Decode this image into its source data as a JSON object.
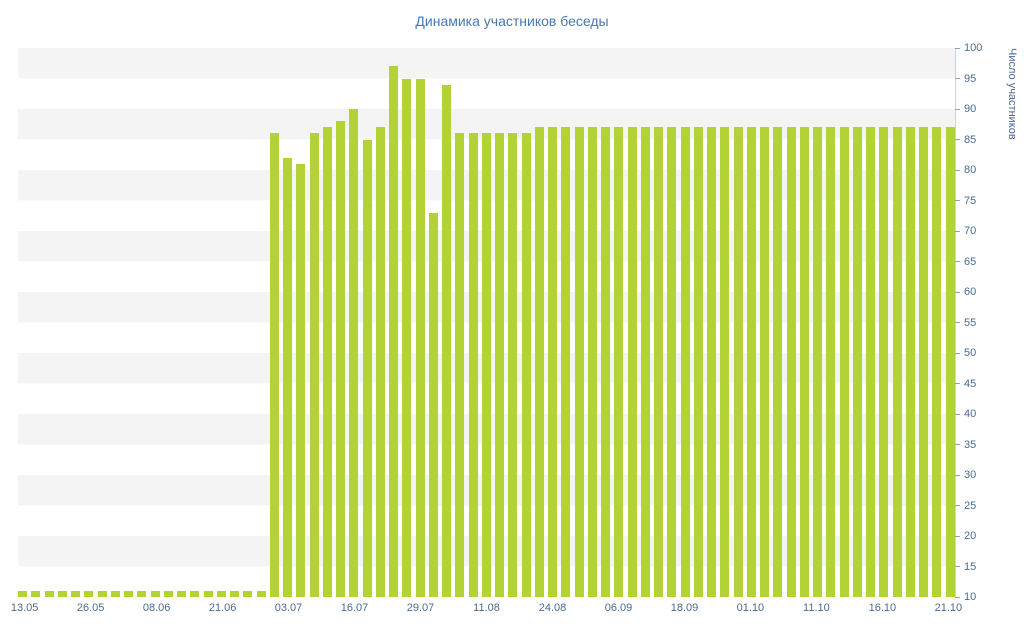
{
  "chart_data": {
    "type": "bar",
    "title": "Динамика участников беседы",
    "ylabel": "Число участников",
    "xlabel": "",
    "ylim": [
      10,
      100
    ],
    "yticks": [
      100,
      95,
      90,
      85,
      80,
      75,
      70,
      65,
      60,
      55,
      50,
      45,
      40,
      35,
      30,
      25,
      20,
      15,
      10
    ],
    "x_labels": [
      "13.05",
      "26.05",
      "08.06",
      "21.06",
      "03.07",
      "16.07",
      "29.07",
      "11.08",
      "24.08",
      "06.09",
      "18.09",
      "01.10",
      "11.10",
      "16.10",
      "21.10"
    ],
    "label_step": 5,
    "values": [
      11,
      11,
      11,
      11,
      11,
      11,
      11,
      11,
      11,
      11,
      11,
      11,
      11,
      11,
      11,
      11,
      11,
      11,
      11,
      86,
      82,
      81,
      86,
      87,
      88,
      90,
      85,
      87,
      97,
      95,
      95,
      73,
      94,
      86,
      86,
      86,
      86,
      86,
      86,
      87,
      87,
      87,
      87,
      87,
      87,
      87,
      87,
      87,
      87,
      87,
      87,
      87,
      87,
      87,
      87,
      87,
      87,
      87,
      87,
      87,
      87,
      87,
      87,
      87,
      87,
      87,
      87,
      87,
      87,
      87,
      87
    ],
    "grid": "horizontal-stripes",
    "legend": "none",
    "colors": {
      "bar": "#b2d235",
      "title": "#4878b0",
      "text": "#4a6b91",
      "stripe": "#f4f4f4",
      "tick": "#8fa3bc"
    }
  }
}
